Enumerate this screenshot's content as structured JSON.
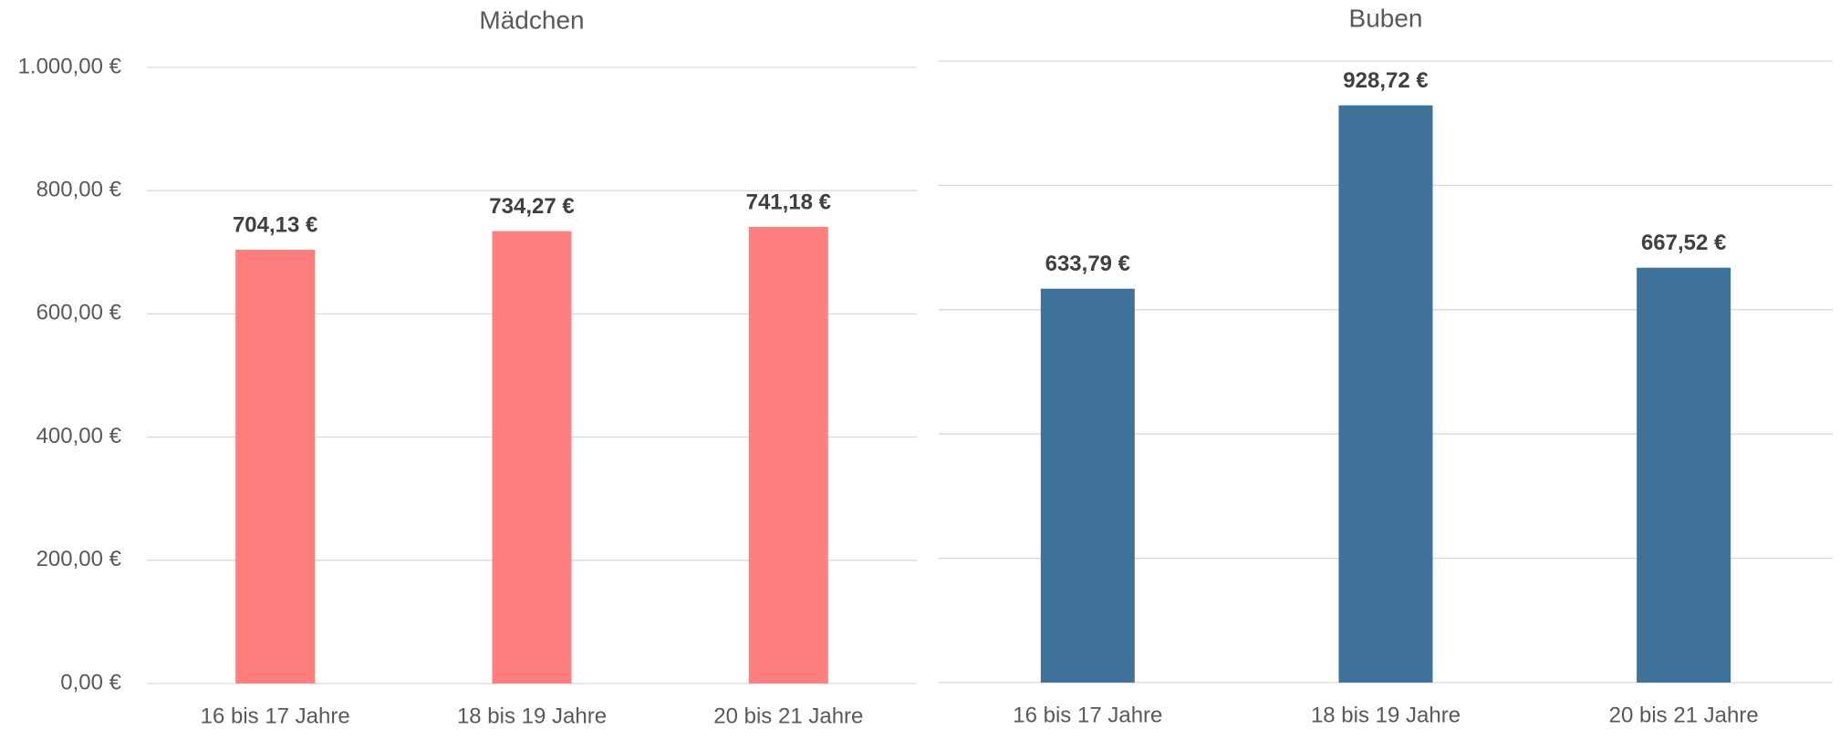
{
  "chart_data": [
    {
      "type": "bar",
      "title": "Mädchen",
      "categories": [
        "16 bis 17 Jahre",
        "18 bis 19 Jahre",
        "20 bis 21 Jahre"
      ],
      "values": [
        704.13,
        734.27,
        741.18
      ],
      "value_labels": [
        "704,13 €",
        "734,27 €",
        "741,18 €"
      ],
      "color": "#ff7f7f",
      "ylim": [
        0,
        1000
      ],
      "yticks": [
        {
          "value": 0,
          "label": "0,00 €"
        },
        {
          "value": 200,
          "label": "200,00 €"
        },
        {
          "value": 400,
          "label": "400,00 €"
        },
        {
          "value": 600,
          "label": "600,00 €"
        },
        {
          "value": 800,
          "label": "800,00 €"
        },
        {
          "value": 1000,
          "label": "1.000,00 €"
        }
      ],
      "grid": true
    },
    {
      "type": "bar",
      "title": "Buben",
      "categories": [
        "16 bis 17 Jahre",
        "18 bis 19 Jahre",
        "20 bis 21 Jahre"
      ],
      "values": [
        633.79,
        928.72,
        667.52
      ],
      "value_labels": [
        "633,79 €",
        "928,72 €",
        "667,52 €"
      ],
      "color": "#3e7299",
      "ylim": [
        0,
        1000
      ],
      "yticks": [
        0,
        200,
        400,
        600,
        800,
        1000
      ],
      "grid": true
    }
  ]
}
